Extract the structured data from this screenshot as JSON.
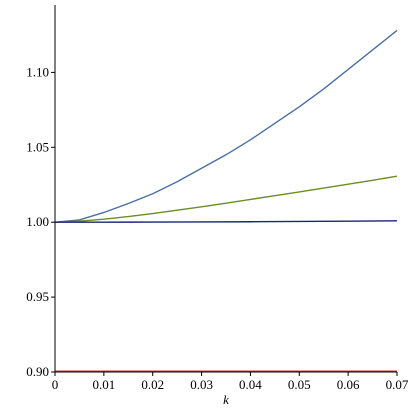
{
  "chart_data": {
    "type": "line",
    "title": "",
    "xlabel": "k",
    "ylabel": "",
    "xlim": [
      0,
      0.07
    ],
    "ylim": [
      0.9,
      1.145
    ],
    "xticks": [
      0,
      0.01,
      0.02,
      0.03,
      0.04,
      0.05,
      0.06,
      0.07
    ],
    "xtick_labels": [
      "0",
      "0.01",
      "0.02",
      "0.03",
      "0.04",
      "0.05",
      "0.06",
      "0.07"
    ],
    "yticks": [
      0.9,
      0.95,
      1.0,
      1.05,
      1.1
    ],
    "ytick_labels": [
      "0.90",
      "0.95",
      "1.00",
      "1.05",
      "1.10"
    ],
    "grid": false,
    "series": [
      {
        "color": "#4a6fa5",
        "x": [
          0,
          0.005,
          0.01,
          0.015,
          0.02,
          0.025,
          0.03,
          0.035,
          0.04,
          0.045,
          0.05,
          0.055,
          0.06,
          0.065,
          0.07
        ],
        "y": [
          1.0,
          1.0015,
          1.0065,
          1.0125,
          1.019,
          1.027,
          1.036,
          1.045,
          1.055,
          1.066,
          1.077,
          1.089,
          1.102,
          1.115,
          1.128
        ]
      },
      {
        "color": "#6b8e23",
        "x": [
          0,
          0.005,
          0.01,
          0.015,
          0.02,
          0.025,
          0.03,
          0.035,
          0.04,
          0.045,
          0.05,
          0.055,
          0.06,
          0.065,
          0.07
        ],
        "y": [
          1.0,
          1.0007,
          1.002,
          1.0038,
          1.0058,
          1.008,
          1.0103,
          1.0127,
          1.0152,
          1.0177,
          1.0202,
          1.0228,
          1.0254,
          1.028,
          1.0307
        ]
      },
      {
        "color": "#1a237e",
        "x": [
          0,
          0.01,
          0.02,
          0.03,
          0.04,
          0.05,
          0.06,
          0.07
        ],
        "y": [
          1.0,
          1.0,
          1.0001,
          1.0002,
          1.0003,
          1.0005,
          1.0007,
          1.0009
        ]
      },
      {
        "color": "#c0392b",
        "x": [
          0,
          0.07
        ],
        "y": [
          0.9005,
          0.9005
        ]
      }
    ]
  }
}
